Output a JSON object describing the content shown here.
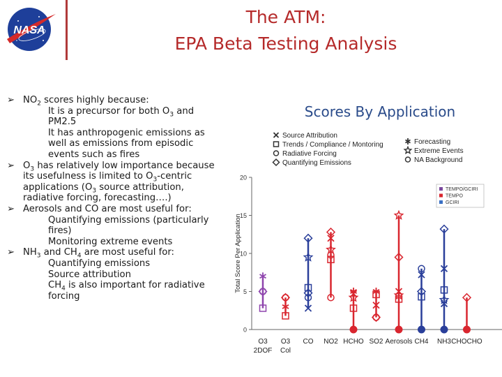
{
  "header": {
    "title_line1": "The ATM:",
    "title_line2": "EPA Beta Testing Analysis",
    "logo_text": "NASA"
  },
  "bullets": [
    {
      "parts": [
        "NO",
        "2",
        " scores highly because:"
      ]
    },
    {
      "parts": [
        "O",
        "3",
        " has relatively low importance because its usefulness is limited to O",
        "3",
        "-centric applications (O",
        "3",
        " source attribution, radiative forcing, forecasting….)"
      ]
    },
    {
      "parts": [
        "Aerosols and CO are most useful for:"
      ]
    },
    {
      "parts": [
        "NH",
        "3",
        " and CH",
        "4",
        " are most useful for:"
      ]
    }
  ],
  "subitems": {
    "b0": [
      {
        "parts": [
          "It is a precursor for both O",
          "3",
          " and PM2.5"
        ]
      },
      {
        "parts": [
          "It has anthropogenic emissions as well as emissions from episodic events such as fires"
        ]
      }
    ],
    "b2": [
      {
        "parts": [
          "Quantifying emissions (particularly fires)"
        ]
      },
      {
        "parts": [
          "Monitoring extreme events"
        ]
      }
    ],
    "b3": [
      {
        "parts": [
          "Quantifying emissions"
        ]
      },
      {
        "parts": [
          "Source attribution"
        ]
      },
      {
        "parts": [
          "CH",
          "4",
          " is also important for radiative forcing"
        ]
      }
    ]
  },
  "chart_data": {
    "type": "scatter",
    "title": "Scores By Application",
    "ylabel": "Total Score Per Application",
    "ylim": [
      0,
      20
    ],
    "yticks": [
      0,
      5,
      10,
      15,
      20
    ],
    "categories": [
      "O3 2DOF",
      "O3 Col",
      "CO",
      "NO2",
      "HCHO",
      "SO2",
      "Aerosols",
      "CH4",
      "NH3",
      "CHOCHO"
    ],
    "category_labels": [
      {
        "top": "O3",
        "bottom": "2DOF"
      },
      {
        "top": "O3",
        "bottom": "Col"
      },
      {
        "top": "CO",
        "bottom": ""
      },
      {
        "top": "NO2",
        "bottom": ""
      },
      {
        "top": "HCHO",
        "bottom": ""
      },
      {
        "top": "SO2",
        "bottom": ""
      },
      {
        "top": "Aerosols",
        "bottom": ""
      },
      {
        "top": "CH4",
        "bottom": ""
      },
      {
        "top": "NH3",
        "bottom": ""
      },
      {
        "top": "CHOCHO",
        "bottom": ""
      }
    ],
    "marker_legend": {
      "left": [
        {
          "symbol": "x",
          "label": "Source Attribution"
        },
        {
          "symbol": "square",
          "label": "Trends / Compliance / Montoring"
        },
        {
          "symbol": "circle",
          "label": "Radiative Forcing"
        },
        {
          "symbol": "diamond",
          "label": "Quantifying Emissions"
        }
      ],
      "right": [
        {
          "symbol": "asterisk",
          "label": "Forecasting"
        },
        {
          "symbol": "star",
          "label": "Extreme Events"
        },
        {
          "symbol": "circle",
          "label": "NA Background"
        }
      ]
    },
    "color_legend": [
      {
        "label": "TEMPO/GCIRI",
        "color": "#7b4a9e"
      },
      {
        "label": "TEMPO",
        "color": "#d9262f"
      },
      {
        "label": "GCIRI",
        "color": "#3a6fc4"
      }
    ],
    "series": [
      {
        "category": "O3 2DOF",
        "color": "#8e44ad",
        "points": [
          {
            "m": "asterisk",
            "y": 7.0
          },
          {
            "m": "circle",
            "y": 5.0
          },
          {
            "m": "diamond",
            "y": 5.0
          },
          {
            "m": "square",
            "y": 2.8
          }
        ]
      },
      {
        "category": "O3 Col",
        "color": "#d9262f",
        "points": [
          {
            "m": "circle",
            "y": 4.2
          },
          {
            "m": "diamond",
            "y": 4.2
          },
          {
            "m": "asterisk",
            "y": 3.0
          },
          {
            "m": "square",
            "y": 1.8
          }
        ]
      },
      {
        "category": "CO",
        "color": "#2a3f9a",
        "points": [
          {
            "m": "diamond",
            "y": 12.0
          },
          {
            "m": "star",
            "y": 9.5
          },
          {
            "m": "square",
            "y": 5.5
          },
          {
            "m": "diamond",
            "y": 4.8
          },
          {
            "m": "circle",
            "y": 4.2
          },
          {
            "m": "x",
            "y": 2.8
          }
        ]
      },
      {
        "category": "NO2",
        "color": "#d9262f",
        "points": [
          {
            "m": "diamond",
            "y": 12.8
          },
          {
            "m": "x",
            "y": 12.0
          },
          {
            "m": "star",
            "y": 10.5
          },
          {
            "m": "circle",
            "y": 9.8
          },
          {
            "m": "square",
            "y": 9.2
          },
          {
            "m": "circle",
            "y": 4.2
          }
        ]
      },
      {
        "category": "HCHO",
        "color": "#d9262f",
        "points": [
          {
            "m": "asterisk",
            "y": 5.0
          },
          {
            "m": "x",
            "y": 4.7
          },
          {
            "m": "star",
            "y": 4.2
          },
          {
            "m": "square",
            "y": 2.8
          },
          {
            "m": "circle",
            "y": 0.0
          }
        ]
      },
      {
        "category": "SO2",
        "color": "#d9262f",
        "points": [
          {
            "m": "asterisk",
            "y": 5.0
          },
          {
            "m": "square",
            "y": 4.6
          },
          {
            "m": "x",
            "y": 3.2
          },
          {
            "m": "circle",
            "y": 1.6
          },
          {
            "m": "diamond",
            "y": 1.6
          }
        ]
      },
      {
        "category": "Aerosols",
        "color": "#d9262f",
        "points": [
          {
            "m": "star",
            "y": 15.0
          },
          {
            "m": "diamond",
            "y": 9.5
          },
          {
            "m": "x",
            "y": 5.0
          },
          {
            "m": "star",
            "y": 4.5
          },
          {
            "m": "square",
            "y": 4.0
          },
          {
            "m": "circle",
            "y": 0.0
          }
        ]
      },
      {
        "category": "CH4",
        "color": "#2a3f9a",
        "points": [
          {
            "m": "circle",
            "y": 8.0
          },
          {
            "m": "x",
            "y": 7.2
          },
          {
            "m": "diamond",
            "y": 5.0
          },
          {
            "m": "square",
            "y": 4.3
          },
          {
            "m": "circle",
            "y": 0.0
          }
        ]
      },
      {
        "category": "NH3",
        "color": "#2a3f9a",
        "points": [
          {
            "m": "diamond",
            "y": 13.2
          },
          {
            "m": "x",
            "y": 8.0
          },
          {
            "m": "square",
            "y": 5.2
          },
          {
            "m": "star",
            "y": 3.9
          },
          {
            "m": "x",
            "y": 3.4
          },
          {
            "m": "circle",
            "y": 0.0
          }
        ]
      },
      {
        "category": "CHOCHO",
        "color": "#d9262f",
        "points": [
          {
            "m": "diamond",
            "y": 4.2
          },
          {
            "m": "circle",
            "y": 0.0
          }
        ]
      }
    ]
  }
}
